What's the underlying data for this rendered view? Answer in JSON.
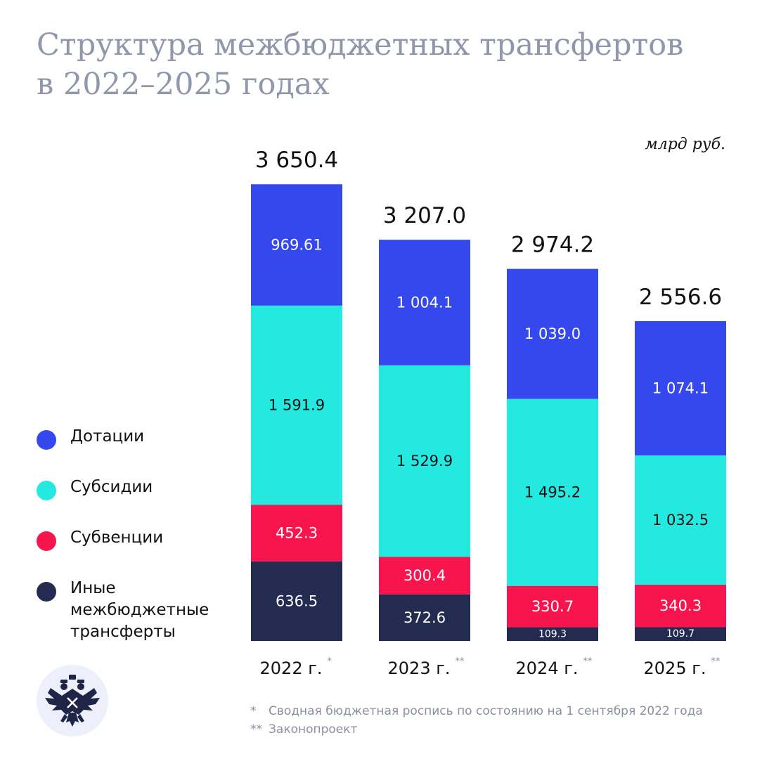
{
  "title": {
    "line1": "Структура межбюджетных трансфертов",
    "line2": "в 2022–2025 годах"
  },
  "unit": "млрд руб.",
  "legend": [
    {
      "label": "Дотации",
      "color": "#3548ee"
    },
    {
      "label": "Субсидии",
      "color": "#23e9e0"
    },
    {
      "label": "Субвенции",
      "color": "#f8154e"
    },
    {
      "label": "Иные межбюджетные трансферты",
      "color": "#232c50"
    }
  ],
  "footnotes": [
    {
      "mark": "*",
      "text": "Сводная бюджетная роспись по состоянию на 1 сентября 2022 года"
    },
    {
      "mark": "**",
      "text": "Законопроект"
    }
  ],
  "chart_data": {
    "type": "bar",
    "stacked": true,
    "title": "Структура межбюджетных трансфертов в 2022–2025 годах",
    "ylabel": "млрд руб.",
    "categories": [
      "2022 г.",
      "2023 г.",
      "2024 г.",
      "2025 г."
    ],
    "category_marks": [
      "*",
      "**",
      "**",
      "**"
    ],
    "totals": [
      3650.4,
      3207.0,
      2974.2,
      2556.6
    ],
    "total_labels": [
      "3 650.4",
      "3 207.0",
      "2 974.2",
      "2 556.6"
    ],
    "series": [
      {
        "name": "Иные межбюджетные трансферты",
        "color": "#232c50",
        "text_color": "#ffffff",
        "values": [
          636.5,
          372.6,
          109.3,
          109.7
        ],
        "labels": [
          "636.5",
          "372.6",
          "109.3",
          "109.7"
        ]
      },
      {
        "name": "Субвенции",
        "color": "#f8154e",
        "text_color": "#ffffff",
        "values": [
          452.3,
          300.4,
          330.7,
          340.3
        ],
        "labels": [
          "452.3",
          "300.4",
          "330.7",
          "340.3"
        ]
      },
      {
        "name": "Субсидии",
        "color": "#23e9e0",
        "text_color": "#111111",
        "values": [
          1591.9,
          1529.9,
          1495.2,
          1032.5
        ],
        "labels": [
          "1 591.9",
          "1 529.9",
          "1 495.2",
          "1 032.5"
        ]
      },
      {
        "name": "Дотации",
        "color": "#3548ee",
        "text_color": "#ffffff",
        "values": [
          969.61,
          1004.1,
          1039.0,
          1074.1
        ],
        "labels": [
          "969.61",
          "1 004.1",
          "1 039.0",
          "1 074.1"
        ]
      }
    ]
  }
}
